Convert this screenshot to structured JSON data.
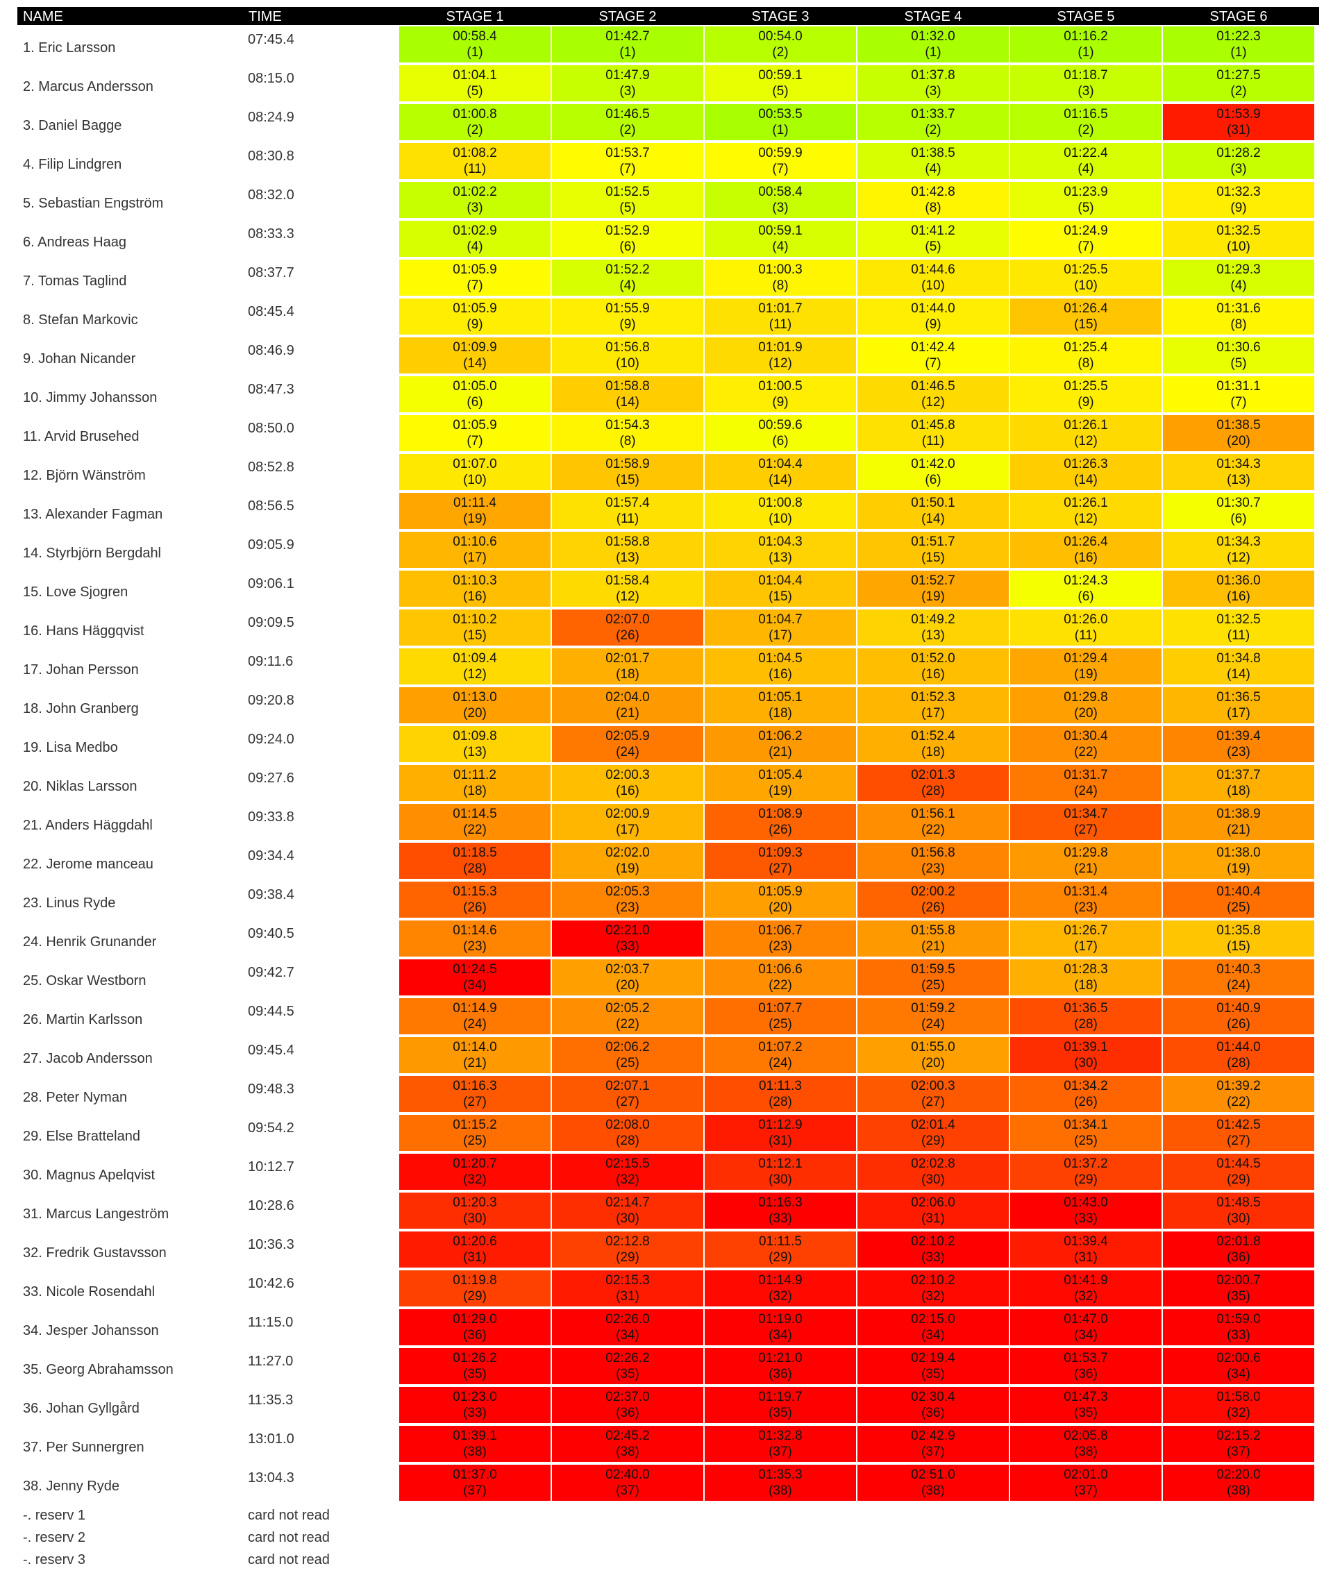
{
  "headers": {
    "name": "NAME",
    "time": "TIME",
    "stages": [
      "STAGE 1",
      "STAGE 2",
      "STAGE 3",
      "STAGE 4",
      "STAGE 5",
      "STAGE 6"
    ]
  },
  "colors": {
    "header_bg": "#000000",
    "best": "#a9ff00",
    "worst": "#ff0000"
  },
  "rows": [
    {
      "name": "1. Eric Larsson",
      "time": "07:45.4",
      "splits": [
        {
          "t": "00:58.4",
          "r": 1
        },
        {
          "t": "01:42.7",
          "r": 1
        },
        {
          "t": "00:54.0",
          "r": 2
        },
        {
          "t": "01:32.0",
          "r": 1
        },
        {
          "t": "01:16.2",
          "r": 1
        },
        {
          "t": "01:22.3",
          "r": 1
        }
      ]
    },
    {
      "name": "2. Marcus Andersson",
      "time": "08:15.0",
      "splits": [
        {
          "t": "01:04.1",
          "r": 5
        },
        {
          "t": "01:47.9",
          "r": 3
        },
        {
          "t": "00:59.1",
          "r": 5
        },
        {
          "t": "01:37.8",
          "r": 3
        },
        {
          "t": "01:18.7",
          "r": 3
        },
        {
          "t": "01:27.5",
          "r": 2
        }
      ]
    },
    {
      "name": "3. Daniel Bagge",
      "time": "08:24.9",
      "splits": [
        {
          "t": "01:00.8",
          "r": 2
        },
        {
          "t": "01:46.5",
          "r": 2
        },
        {
          "t": "00:53.5",
          "r": 1
        },
        {
          "t": "01:33.7",
          "r": 2
        },
        {
          "t": "01:16.5",
          "r": 2
        },
        {
          "t": "01:53.9",
          "r": 31
        }
      ]
    },
    {
      "name": "4. Filip Lindgren",
      "time": "08:30.8",
      "splits": [
        {
          "t": "01:08.2",
          "r": 11
        },
        {
          "t": "01:53.7",
          "r": 7
        },
        {
          "t": "00:59.9",
          "r": 7
        },
        {
          "t": "01:38.5",
          "r": 4
        },
        {
          "t": "01:22.4",
          "r": 4
        },
        {
          "t": "01:28.2",
          "r": 3
        }
      ]
    },
    {
      "name": "5. Sebastian Engström",
      "time": "08:32.0",
      "splits": [
        {
          "t": "01:02.2",
          "r": 3
        },
        {
          "t": "01:52.5",
          "r": 5
        },
        {
          "t": "00:58.4",
          "r": 3
        },
        {
          "t": "01:42.8",
          "r": 8
        },
        {
          "t": "01:23.9",
          "r": 5
        },
        {
          "t": "01:32.3",
          "r": 9
        }
      ]
    },
    {
      "name": "6. Andreas Haag",
      "time": "08:33.3",
      "splits": [
        {
          "t": "01:02.9",
          "r": 4
        },
        {
          "t": "01:52.9",
          "r": 6
        },
        {
          "t": "00:59.1",
          "r": 4
        },
        {
          "t": "01:41.2",
          "r": 5
        },
        {
          "t": "01:24.9",
          "r": 7
        },
        {
          "t": "01:32.5",
          "r": 10
        }
      ]
    },
    {
      "name": "7. Tomas Taglind",
      "time": "08:37.7",
      "splits": [
        {
          "t": "01:05.9",
          "r": 7
        },
        {
          "t": "01:52.2",
          "r": 4
        },
        {
          "t": "01:00.3",
          "r": 8
        },
        {
          "t": "01:44.6",
          "r": 10
        },
        {
          "t": "01:25.5",
          "r": 10
        },
        {
          "t": "01:29.3",
          "r": 4
        }
      ]
    },
    {
      "name": "8. Stefan Markovic",
      "time": "08:45.4",
      "splits": [
        {
          "t": "01:05.9",
          "r": 9
        },
        {
          "t": "01:55.9",
          "r": 9
        },
        {
          "t": "01:01.7",
          "r": 11
        },
        {
          "t": "01:44.0",
          "r": 9
        },
        {
          "t": "01:26.4",
          "r": 15
        },
        {
          "t": "01:31.6",
          "r": 8
        }
      ]
    },
    {
      "name": "9. Johan Nicander",
      "time": "08:46.9",
      "splits": [
        {
          "t": "01:09.9",
          "r": 14
        },
        {
          "t": "01:56.8",
          "r": 10
        },
        {
          "t": "01:01.9",
          "r": 12
        },
        {
          "t": "01:42.4",
          "r": 7
        },
        {
          "t": "01:25.4",
          "r": 8
        },
        {
          "t": "01:30.6",
          "r": 5
        }
      ]
    },
    {
      "name": "10. Jimmy Johansson",
      "time": "08:47.3",
      "splits": [
        {
          "t": "01:05.0",
          "r": 6
        },
        {
          "t": "01:58.8",
          "r": 14
        },
        {
          "t": "01:00.5",
          "r": 9
        },
        {
          "t": "01:46.5",
          "r": 12
        },
        {
          "t": "01:25.5",
          "r": 9
        },
        {
          "t": "01:31.1",
          "r": 7
        }
      ]
    },
    {
      "name": "11. Arvid Brusehed",
      "time": "08:50.0",
      "splits": [
        {
          "t": "01:05.9",
          "r": 7
        },
        {
          "t": "01:54.3",
          "r": 8
        },
        {
          "t": "00:59.6",
          "r": 6
        },
        {
          "t": "01:45.8",
          "r": 11
        },
        {
          "t": "01:26.1",
          "r": 12
        },
        {
          "t": "01:38.5",
          "r": 20
        }
      ]
    },
    {
      "name": "12. Björn Wänström",
      "time": "08:52.8",
      "splits": [
        {
          "t": "01:07.0",
          "r": 10
        },
        {
          "t": "01:58.9",
          "r": 15
        },
        {
          "t": "01:04.4",
          "r": 14
        },
        {
          "t": "01:42.0",
          "r": 6
        },
        {
          "t": "01:26.3",
          "r": 14
        },
        {
          "t": "01:34.3",
          "r": 13
        }
      ]
    },
    {
      "name": "13. Alexander Fagman",
      "time": "08:56.5",
      "splits": [
        {
          "t": "01:11.4",
          "r": 19
        },
        {
          "t": "01:57.4",
          "r": 11
        },
        {
          "t": "01:00.8",
          "r": 10
        },
        {
          "t": "01:50.1",
          "r": 14
        },
        {
          "t": "01:26.1",
          "r": 12
        },
        {
          "t": "01:30.7",
          "r": 6
        }
      ]
    },
    {
      "name": "14. Styrbjörn Bergdahl",
      "time": "09:05.9",
      "splits": [
        {
          "t": "01:10.6",
          "r": 17
        },
        {
          "t": "01:58.8",
          "r": 13
        },
        {
          "t": "01:04.3",
          "r": 13
        },
        {
          "t": "01:51.7",
          "r": 15
        },
        {
          "t": "01:26.4",
          "r": 16
        },
        {
          "t": "01:34.3",
          "r": 12
        }
      ]
    },
    {
      "name": "15. Love Sjogren",
      "time": "09:06.1",
      "splits": [
        {
          "t": "01:10.3",
          "r": 16
        },
        {
          "t": "01:58.4",
          "r": 12
        },
        {
          "t": "01:04.4",
          "r": 15
        },
        {
          "t": "01:52.7",
          "r": 19
        },
        {
          "t": "01:24.3",
          "r": 6
        },
        {
          "t": "01:36.0",
          "r": 16
        }
      ]
    },
    {
      "name": "16. Hans Häggqvist",
      "time": "09:09.5",
      "splits": [
        {
          "t": "01:10.2",
          "r": 15
        },
        {
          "t": "02:07.0",
          "r": 26
        },
        {
          "t": "01:04.7",
          "r": 17
        },
        {
          "t": "01:49.2",
          "r": 13
        },
        {
          "t": "01:26.0",
          "r": 11
        },
        {
          "t": "01:32.5",
          "r": 11
        }
      ]
    },
    {
      "name": "17. Johan Persson",
      "time": "09:11.6",
      "splits": [
        {
          "t": "01:09.4",
          "r": 12
        },
        {
          "t": "02:01.7",
          "r": 18
        },
        {
          "t": "01:04.5",
          "r": 16
        },
        {
          "t": "01:52.0",
          "r": 16
        },
        {
          "t": "01:29.4",
          "r": 19
        },
        {
          "t": "01:34.8",
          "r": 14
        }
      ]
    },
    {
      "name": "18. John Granberg",
      "time": "09:20.8",
      "splits": [
        {
          "t": "01:13.0",
          "r": 20
        },
        {
          "t": "02:04.0",
          "r": 21
        },
        {
          "t": "01:05.1",
          "r": 18
        },
        {
          "t": "01:52.3",
          "r": 17
        },
        {
          "t": "01:29.8",
          "r": 20
        },
        {
          "t": "01:36.5",
          "r": 17
        }
      ]
    },
    {
      "name": "19. Lisa Medbo",
      "time": "09:24.0",
      "splits": [
        {
          "t": "01:09.8",
          "r": 13
        },
        {
          "t": "02:05.9",
          "r": 24
        },
        {
          "t": "01:06.2",
          "r": 21
        },
        {
          "t": "01:52.4",
          "r": 18
        },
        {
          "t": "01:30.4",
          "r": 22
        },
        {
          "t": "01:39.4",
          "r": 23
        }
      ]
    },
    {
      "name": "20. Niklas Larsson",
      "time": "09:27.6",
      "splits": [
        {
          "t": "01:11.2",
          "r": 18
        },
        {
          "t": "02:00.3",
          "r": 16
        },
        {
          "t": "01:05.4",
          "r": 19
        },
        {
          "t": "02:01.3",
          "r": 28
        },
        {
          "t": "01:31.7",
          "r": 24
        },
        {
          "t": "01:37.7",
          "r": 18
        }
      ]
    },
    {
      "name": "21. Anders Häggdahl",
      "time": "09:33.8",
      "splits": [
        {
          "t": "01:14.5",
          "r": 22
        },
        {
          "t": "02:00.9",
          "r": 17
        },
        {
          "t": "01:08.9",
          "r": 26
        },
        {
          "t": "01:56.1",
          "r": 22
        },
        {
          "t": "01:34.7",
          "r": 27
        },
        {
          "t": "01:38.9",
          "r": 21
        }
      ]
    },
    {
      "name": "22. Jerome manceau",
      "time": "09:34.4",
      "splits": [
        {
          "t": "01:18.5",
          "r": 28
        },
        {
          "t": "02:02.0",
          "r": 19
        },
        {
          "t": "01:09.3",
          "r": 27
        },
        {
          "t": "01:56.8",
          "r": 23
        },
        {
          "t": "01:29.8",
          "r": 21
        },
        {
          "t": "01:38.0",
          "r": 19
        }
      ]
    },
    {
      "name": "23. Linus Ryde",
      "time": "09:38.4",
      "splits": [
        {
          "t": "01:15.3",
          "r": 26
        },
        {
          "t": "02:05.3",
          "r": 23
        },
        {
          "t": "01:05.9",
          "r": 20
        },
        {
          "t": "02:00.2",
          "r": 26
        },
        {
          "t": "01:31.4",
          "r": 23
        },
        {
          "t": "01:40.4",
          "r": 25
        }
      ]
    },
    {
      "name": "24. Henrik Grunander",
      "time": "09:40.5",
      "splits": [
        {
          "t": "01:14.6",
          "r": 23
        },
        {
          "t": "02:21.0",
          "r": 33
        },
        {
          "t": "01:06.7",
          "r": 23
        },
        {
          "t": "01:55.8",
          "r": 21
        },
        {
          "t": "01:26.7",
          "r": 17
        },
        {
          "t": "01:35.8",
          "r": 15
        }
      ]
    },
    {
      "name": "25. Oskar Westborn",
      "time": "09:42.7",
      "splits": [
        {
          "t": "01:24.5",
          "r": 34
        },
        {
          "t": "02:03.7",
          "r": 20
        },
        {
          "t": "01:06.6",
          "r": 22
        },
        {
          "t": "01:59.5",
          "r": 25
        },
        {
          "t": "01:28.3",
          "r": 18
        },
        {
          "t": "01:40.3",
          "r": 24
        }
      ]
    },
    {
      "name": "26. Martin Karlsson",
      "time": "09:44.5",
      "splits": [
        {
          "t": "01:14.9",
          "r": 24
        },
        {
          "t": "02:05.2",
          "r": 22
        },
        {
          "t": "01:07.7",
          "r": 25
        },
        {
          "t": "01:59.2",
          "r": 24
        },
        {
          "t": "01:36.5",
          "r": 28
        },
        {
          "t": "01:40.9",
          "r": 26
        }
      ]
    },
    {
      "name": "27. Jacob Andersson",
      "time": "09:45.4",
      "splits": [
        {
          "t": "01:14.0",
          "r": 21
        },
        {
          "t": "02:06.2",
          "r": 25
        },
        {
          "t": "01:07.2",
          "r": 24
        },
        {
          "t": "01:55.0",
          "r": 20
        },
        {
          "t": "01:39.1",
          "r": 30
        },
        {
          "t": "01:44.0",
          "r": 28
        }
      ]
    },
    {
      "name": "28. Peter Nyman",
      "time": "09:48.3",
      "splits": [
        {
          "t": "01:16.3",
          "r": 27
        },
        {
          "t": "02:07.1",
          "r": 27
        },
        {
          "t": "01:11.3",
          "r": 28
        },
        {
          "t": "02:00.3",
          "r": 27
        },
        {
          "t": "01:34.2",
          "r": 26
        },
        {
          "t": "01:39.2",
          "r": 22
        }
      ]
    },
    {
      "name": "29. Else Bratteland",
      "time": "09:54.2",
      "splits": [
        {
          "t": "01:15.2",
          "r": 25
        },
        {
          "t": "02:08.0",
          "r": 28
        },
        {
          "t": "01:12.9",
          "r": 31
        },
        {
          "t": "02:01.4",
          "r": 29
        },
        {
          "t": "01:34.1",
          "r": 25
        },
        {
          "t": "01:42.5",
          "r": 27
        }
      ]
    },
    {
      "name": "30. Magnus Apelqvist",
      "time": "10:12.7",
      "splits": [
        {
          "t": "01:20.7",
          "r": 32
        },
        {
          "t": "02:15.5",
          "r": 32
        },
        {
          "t": "01:12.1",
          "r": 30
        },
        {
          "t": "02:02.8",
          "r": 30
        },
        {
          "t": "01:37.2",
          "r": 29
        },
        {
          "t": "01:44.5",
          "r": 29
        }
      ]
    },
    {
      "name": "31. Marcus Langeström",
      "time": "10:28.6",
      "splits": [
        {
          "t": "01:20.3",
          "r": 30
        },
        {
          "t": "02:14.7",
          "r": 30
        },
        {
          "t": "01:16.3",
          "r": 33
        },
        {
          "t": "02:06.0",
          "r": 31
        },
        {
          "t": "01:43.0",
          "r": 33
        },
        {
          "t": "01:48.5",
          "r": 30
        }
      ]
    },
    {
      "name": "32. Fredrik Gustavsson",
      "time": "10:36.3",
      "splits": [
        {
          "t": "01:20.6",
          "r": 31
        },
        {
          "t": "02:12.8",
          "r": 29
        },
        {
          "t": "01:11.5",
          "r": 29
        },
        {
          "t": "02:10.2",
          "r": 33
        },
        {
          "t": "01:39.4",
          "r": 31
        },
        {
          "t": "02:01.8",
          "r": 36
        }
      ]
    },
    {
      "name": "33. Nicole Rosendahl",
      "time": "10:42.6",
      "splits": [
        {
          "t": "01:19.8",
          "r": 29
        },
        {
          "t": "02:15.3",
          "r": 31
        },
        {
          "t": "01:14.9",
          "r": 32
        },
        {
          "t": "02:10.2",
          "r": 32
        },
        {
          "t": "01:41.9",
          "r": 32
        },
        {
          "t": "02:00.7",
          "r": 35
        }
      ]
    },
    {
      "name": "34. Jesper Johansson",
      "time": "11:15.0",
      "splits": [
        {
          "t": "01:29.0",
          "r": 36
        },
        {
          "t": "02:26.0",
          "r": 34
        },
        {
          "t": "01:19.0",
          "r": 34
        },
        {
          "t": "02:15.0",
          "r": 34
        },
        {
          "t": "01:47.0",
          "r": 34
        },
        {
          "t": "01:59.0",
          "r": 33
        }
      ]
    },
    {
      "name": "35. Georg Abrahamsson",
      "time": "11:27.0",
      "splits": [
        {
          "t": "01:26.2",
          "r": 35
        },
        {
          "t": "02:26.2",
          "r": 35
        },
        {
          "t": "01:21.0",
          "r": 36
        },
        {
          "t": "02:19.4",
          "r": 35
        },
        {
          "t": "01:53.7",
          "r": 36
        },
        {
          "t": "02:00.6",
          "r": 34
        }
      ]
    },
    {
      "name": "36. Johan Gyllgård",
      "time": "11:35.3",
      "splits": [
        {
          "t": "01:23.0",
          "r": 33
        },
        {
          "t": "02:37.0",
          "r": 36
        },
        {
          "t": "01:19.7",
          "r": 35
        },
        {
          "t": "02:30.4",
          "r": 36
        },
        {
          "t": "01:47.3",
          "r": 35
        },
        {
          "t": "01:58.0",
          "r": 32
        }
      ]
    },
    {
      "name": "37. Per Sunnergren",
      "time": "13:01.0",
      "splits": [
        {
          "t": "01:39.1",
          "r": 38
        },
        {
          "t": "02:45.2",
          "r": 38
        },
        {
          "t": "01:32.8",
          "r": 37
        },
        {
          "t": "02:42.9",
          "r": 37
        },
        {
          "t": "02:05.8",
          "r": 38
        },
        {
          "t": "02:15.2",
          "r": 37
        }
      ]
    },
    {
      "name": "38. Jenny Ryde",
      "time": "13:04.3",
      "splits": [
        {
          "t": "01:37.0",
          "r": 37
        },
        {
          "t": "02:40.0",
          "r": 37
        },
        {
          "t": "01:35.3",
          "r": 38
        },
        {
          "t": "02:51.0",
          "r": 38
        },
        {
          "t": "02:01.0",
          "r": 37
        },
        {
          "t": "02:20.0",
          "r": 38
        }
      ]
    }
  ],
  "reserves": [
    {
      "name": "-. reserv 1",
      "status": "card not read"
    },
    {
      "name": "-. reserv 2",
      "status": "card not read"
    },
    {
      "name": "-. reserv 3",
      "status": "card not read"
    }
  ]
}
